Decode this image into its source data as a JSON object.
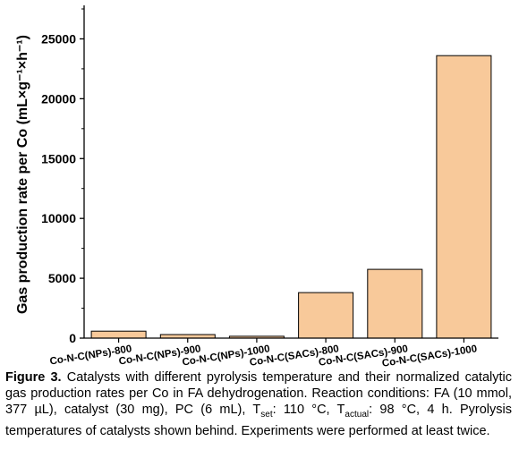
{
  "chart_data": {
    "type": "bar",
    "categories": [
      "Co-N-C(NPs)-800",
      "Co-N-C(NPs)-900",
      "Co-N-C(NPs)-1000",
      "Co-N-C(SACs)-800",
      "Co-N-C(SACs)-900",
      "Co-N-C(SACs)-1000"
    ],
    "values": [
      580,
      300,
      160,
      3800,
      5750,
      23600
    ],
    "ylabel": "Gas production rate per Co (mL×g⁻¹×h⁻¹)",
    "ylim": [
      0,
      27500
    ],
    "yticks": [
      0,
      5000,
      10000,
      15000,
      20000,
      25000
    ],
    "bar_color": "#f8c99a",
    "grid": false
  },
  "caption": {
    "label": "Figure 3.",
    "line1": " Catalysts with different pyrolysis temperature and their normalized catalytic gas production rates per Co in FA dehydrogenation. Reaction conditions: FA (10 mmol, 377 µL), catalyst (30 mg), PC (6 mL), T",
    "tset_sub": "set",
    "line2": ": 110 °C, T",
    "tactual_sub": "actual",
    "line3": ": 98 °C, 4 h. Pyrolysis temperatures of catalysts shown behind. Experiments were performed at least twice."
  }
}
